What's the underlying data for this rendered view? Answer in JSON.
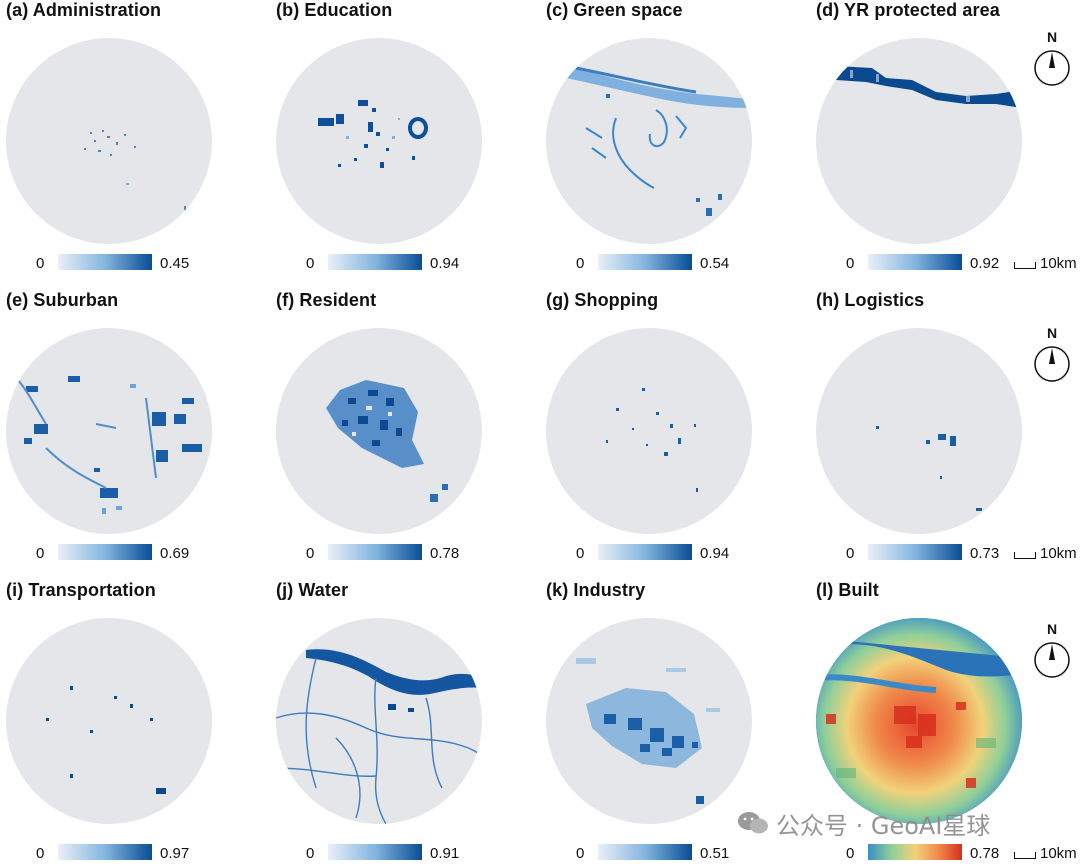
{
  "colors": {
    "disc_bg": "#e4e6e9",
    "blue_light": "#d6e6f4",
    "blue_dark": "#084d96",
    "built_low": "#2f7fc1",
    "built_high": "#d7301f"
  },
  "panels": [
    {
      "id": "a",
      "title": "(a) Administration",
      "legend_min": "0",
      "legend_max": "0.45",
      "ramp": "blue"
    },
    {
      "id": "b",
      "title": "(b) Education",
      "legend_min": "0",
      "legend_max": "0.94",
      "ramp": "blue"
    },
    {
      "id": "c",
      "title": "(c) Green space",
      "legend_min": "0",
      "legend_max": "0.54",
      "ramp": "blue"
    },
    {
      "id": "d",
      "title": "(d) YR protected area",
      "legend_min": "0",
      "legend_max": "0.92",
      "ramp": "blue"
    },
    {
      "id": "e",
      "title": "(e) Suburban",
      "legend_min": "0",
      "legend_max": "0.69",
      "ramp": "blue"
    },
    {
      "id": "f",
      "title": "(f) Resident",
      "legend_min": "0",
      "legend_max": "0.78",
      "ramp": "blue"
    },
    {
      "id": "g",
      "title": "(g) Shopping",
      "legend_min": "0",
      "legend_max": "0.94",
      "ramp": "blue"
    },
    {
      "id": "h",
      "title": "(h) Logistics",
      "legend_min": "0",
      "legend_max": "0.73",
      "ramp": "blue"
    },
    {
      "id": "i",
      "title": "(i) Transportation",
      "legend_min": "0",
      "legend_max": "0.97",
      "ramp": "blue"
    },
    {
      "id": "j",
      "title": "(j) Water",
      "legend_min": "0",
      "legend_max": "0.91",
      "ramp": "blue"
    },
    {
      "id": "k",
      "title": "(k) Industry",
      "legend_min": "0",
      "legend_max": "0.51",
      "ramp": "blue"
    },
    {
      "id": "l",
      "title": "(l) Built",
      "legend_min": "0",
      "legend_max": "0.78",
      "ramp": "spectral"
    }
  ],
  "scalebar_label": "10km",
  "north_label": "N",
  "watermark_text": "公众号 · GeoAI星球",
  "icons": {
    "north_arrow": "north-arrow-icon",
    "scalebar": "scale-bar-icon",
    "watermark": "wechat-icon"
  }
}
